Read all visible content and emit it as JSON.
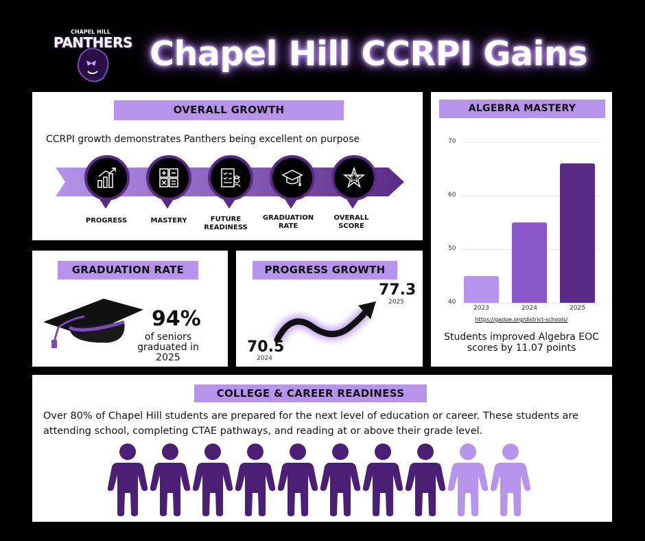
{
  "header": {
    "logo_text": "PANTHERS",
    "logo_subtext": "CHAPEL HILL",
    "title": "Chapel Hill CCRPI Gains"
  },
  "overall_growth": {
    "heading": "OVERALL GROWTH",
    "description": "CCRPI growth demonstrates Panthers being excellent on purpose",
    "steps": [
      {
        "label": "PROGRESS",
        "icon": "bar-chart-arrow-icon"
      },
      {
        "label": "MASTERY",
        "icon": "calculator-icon"
      },
      {
        "label": "FUTURE READINESS",
        "icon": "checklist-graduate-icon"
      },
      {
        "label": "GRADUATION RATE",
        "icon": "graduation-cap-icon"
      },
      {
        "label": "OVERALL SCORE",
        "icon": "star-icon"
      }
    ],
    "colors": {
      "arrow_light": "#b794ec",
      "arrow_dark": "#5b2a86"
    }
  },
  "algebra": {
    "heading": "ALGEBRA MASTERY",
    "source": "https://gadoe.org/district-schools/",
    "caption": "Students improved Algebra EOC scores by 11.07 points"
  },
  "chart_data": {
    "type": "bar",
    "categories": [
      "2023",
      "2024",
      "2025"
    ],
    "values": [
      45,
      55,
      66
    ],
    "ylim": [
      40,
      70
    ],
    "yticks": [
      "40",
      "50",
      "60",
      "70"
    ],
    "colors": [
      "#b794ec",
      "#8a58c9",
      "#5b2a86"
    ],
    "grid": true
  },
  "graduation": {
    "heading": "GRADUATION RATE",
    "value": "94%",
    "caption_line1": "of seniors",
    "caption_line2": "graduated in",
    "caption_line3": "2025"
  },
  "progress": {
    "heading": "PROGRESS GROWTH",
    "start_value": "70.5",
    "start_year": "2024",
    "end_value": "77.3",
    "end_year": "2025"
  },
  "readiness": {
    "heading": "COLLEGE & CAREER READINESS",
    "description": "Over 80% of Chapel Hill students are prepared for the next level of education or career. These students are attending school, completing CTAE pathways, and reading at or above their grade level.",
    "ready_count": 8,
    "total_count": 10,
    "colors": {
      "ready": "#4b1f74",
      "other": "#b794ec"
    }
  }
}
